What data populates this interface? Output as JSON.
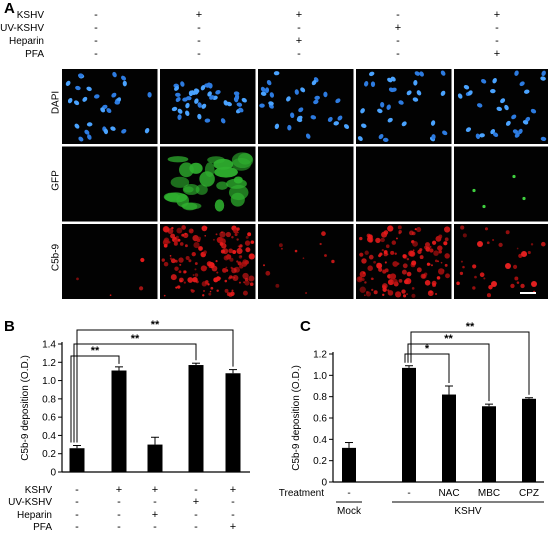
{
  "panel_a": {
    "letter": "A",
    "conditions": [
      {
        "name": "KSHV",
        "signs": [
          "-",
          "+",
          "+",
          "-",
          "+"
        ]
      },
      {
        "name": "UV-KSHV",
        "signs": [
          "-",
          "-",
          "-",
          "+",
          "-"
        ]
      },
      {
        "name": "Heparin",
        "signs": [
          "-",
          "-",
          "+",
          "-",
          "-"
        ]
      },
      {
        "name": "PFA",
        "signs": [
          "-",
          "-",
          "-",
          "-",
          "+"
        ]
      }
    ],
    "rows": [
      "DAPI",
      "GFP",
      "C5b-9"
    ]
  },
  "panel_b": {
    "letter": "B",
    "conditions": [
      {
        "name": "KSHV",
        "signs": [
          "-",
          "+",
          "+",
          "-",
          "+"
        ]
      },
      {
        "name": "UV-KSHV",
        "signs": [
          "-",
          "-",
          "-",
          "+",
          "-"
        ]
      },
      {
        "name": "Heparin",
        "signs": [
          "-",
          "-",
          "+",
          "-",
          "-"
        ]
      },
      {
        "name": "PFA",
        "signs": [
          "-",
          "-",
          "-",
          "-",
          "+"
        ]
      }
    ],
    "significance": [
      "**",
      "**",
      "**"
    ]
  },
  "panel_c": {
    "letter": "C",
    "treatment_label": "Treatment",
    "treatment_values": [
      "-",
      "-",
      "NAC",
      "MBC",
      "CPZ"
    ],
    "groups": [
      {
        "label": "Mock"
      },
      {
        "label": "KSHV"
      }
    ],
    "significance": [
      "*",
      "**",
      "**"
    ]
  },
  "chart_data": [
    {
      "type": "bar",
      "ylabel": "C5b-9 deposition (O.D.)",
      "ylim": [
        0,
        1.4
      ],
      "yticks": [
        0,
        0.2,
        0.4,
        0.6,
        0.8,
        1.0,
        1.2,
        1.4
      ],
      "ytick_labels": [
        "0",
        "0.2",
        "0.4",
        "0.6",
        "0.8",
        "1.0",
        "1.2",
        "1.4"
      ],
      "values": [
        0.26,
        1.11,
        0.3,
        1.17,
        1.08
      ],
      "errors": [
        0.03,
        0.04,
        0.08,
        0.02,
        0.04
      ],
      "comparisons": [
        [
          0,
          1,
          "**"
        ],
        [
          0,
          3,
          "**"
        ],
        [
          0,
          4,
          "**"
        ]
      ]
    },
    {
      "type": "bar",
      "ylabel": "C5b-9 deposition (O.D.)",
      "ylim": [
        0,
        1.2
      ],
      "yticks": [
        0,
        0.2,
        0.4,
        0.6,
        0.8,
        1.0,
        1.2
      ],
      "ytick_labels": [
        "0",
        "0.2",
        "0.4",
        "0.6",
        "0.8",
        "1.0",
        "1.2"
      ],
      "values": [
        0.32,
        1.07,
        0.82,
        0.71,
        0.78
      ],
      "errors": [
        0.05,
        0.02,
        0.08,
        0.02,
        0.01
      ],
      "comparisons": [
        [
          1,
          2,
          "*"
        ],
        [
          1,
          3,
          "**"
        ],
        [
          1,
          4,
          "**"
        ]
      ]
    }
  ]
}
